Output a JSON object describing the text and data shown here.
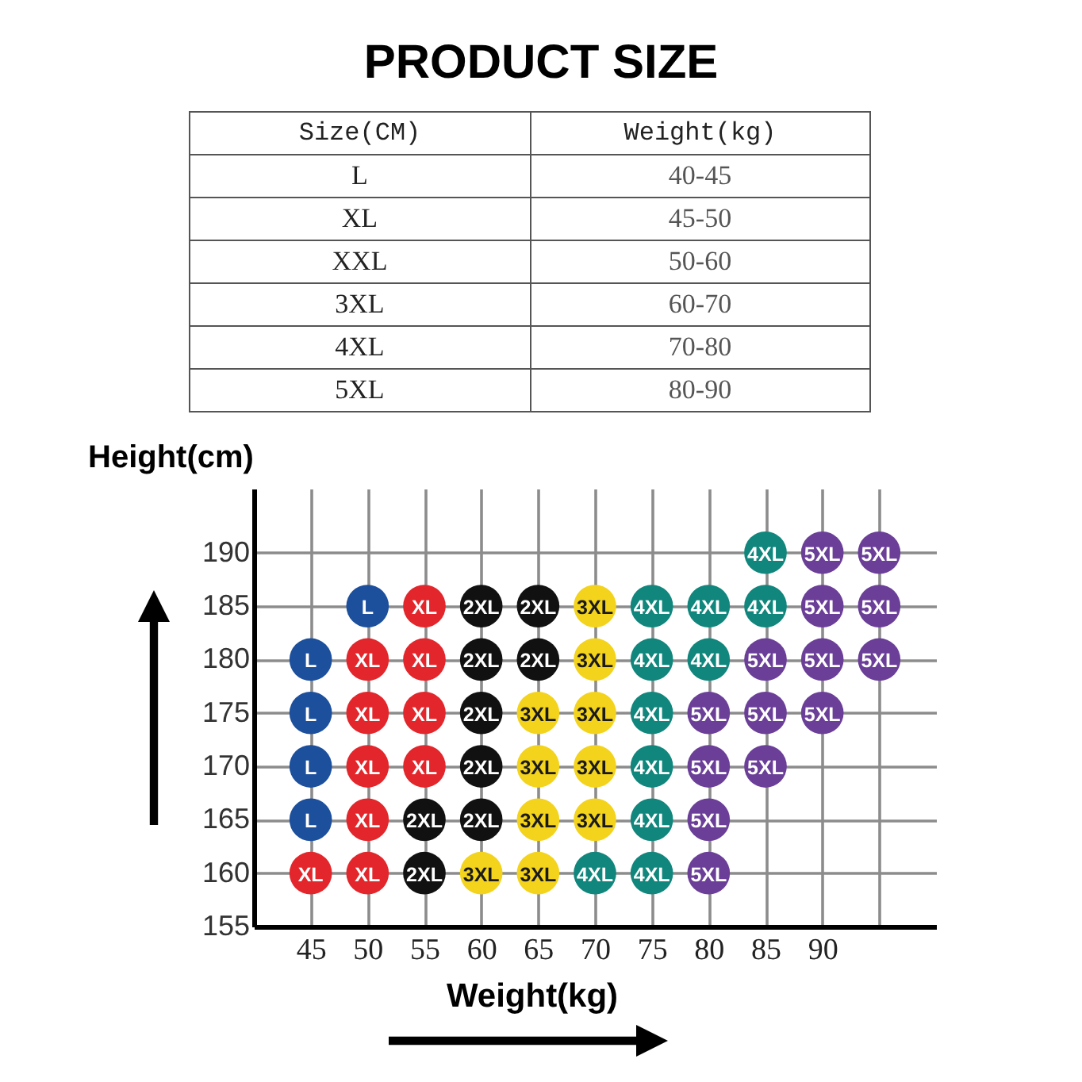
{
  "chart_data": [
    {
      "type": "other",
      "title": "PRODUCT SIZE",
      "annotations": [
        "Size(CM)",
        "Weight(kg)",
        "L",
        "40-45",
        "XL",
        "45-50",
        "XXL",
        "50-60",
        "3XL",
        "60-70",
        "4XL",
        "70-80",
        "5XL",
        "80-90"
      ]
    },
    {
      "type": "scatter",
      "xlabel": "Weight(kg)",
      "ylabel": "Height(cm)",
      "xlim": [
        40,
        100
      ],
      "ylim": [
        155,
        196
      ],
      "xticks": [
        45,
        50,
        55,
        60,
        65,
        70,
        75,
        80,
        85,
        90,
        {
          "value": 95,
          "label": null
        }
      ],
      "yticks": [
        155,
        160,
        165,
        170,
        175,
        180,
        185,
        190
      ],
      "grid": true,
      "legend": false,
      "marker": "circle",
      "series": [
        {
          "name": "L",
          "color": "#1c4f9c",
          "x": [
            50,
            45,
            45,
            45,
            45
          ],
          "values": [
            185,
            180,
            175,
            170,
            165
          ]
        },
        {
          "name": "XL",
          "color": "#e3262b",
          "x": [
            55,
            50,
            55,
            50,
            55,
            50,
            55,
            50,
            45,
            50
          ],
          "values": [
            185,
            180,
            180,
            175,
            175,
            170,
            170,
            165,
            160,
            160
          ]
        },
        {
          "name": "2XL",
          "color": "#111111",
          "x": [
            60,
            65,
            60,
            65,
            60,
            60,
            55,
            60,
            55
          ],
          "values": [
            185,
            185,
            180,
            180,
            175,
            170,
            165,
            165,
            160
          ]
        },
        {
          "name": "3XL",
          "color": "#f3d31c",
          "x": [
            70,
            70,
            65,
            70,
            65,
            70,
            65,
            70,
            60,
            65
          ],
          "values": [
            185,
            180,
            175,
            175,
            170,
            170,
            165,
            165,
            160,
            160
          ]
        },
        {
          "name": "4XL",
          "color": "#11867c",
          "x": [
            85,
            75,
            80,
            85,
            75,
            80,
            75,
            75,
            75,
            70,
            75
          ],
          "values": [
            190,
            185,
            185,
            185,
            180,
            180,
            175,
            170,
            165,
            160,
            160
          ]
        },
        {
          "name": "5XL",
          "color": "#6b3f98",
          "x": [
            90,
            95,
            90,
            95,
            85,
            90,
            95,
            80,
            85,
            90,
            80,
            85,
            80,
            80
          ],
          "values": [
            190,
            190,
            185,
            185,
            180,
            180,
            180,
            175,
            175,
            175,
            170,
            170,
            165,
            160
          ]
        }
      ]
    }
  ]
}
